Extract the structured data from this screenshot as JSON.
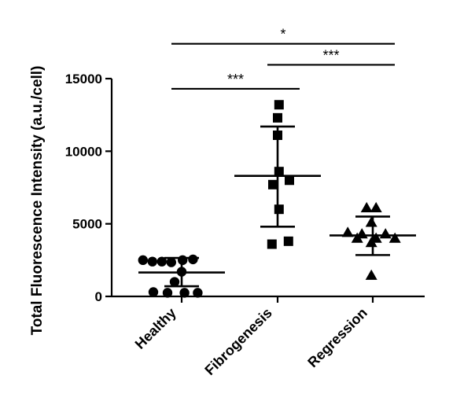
{
  "chart_data": {
    "type": "scatter",
    "title": "",
    "xlabel": "",
    "ylabel": "Total Fluorescence Intensity (a.u./cell)",
    "ylim": [
      0,
      15000
    ],
    "yticks": [
      "0",
      "5000",
      "10000",
      "15000"
    ],
    "grid": false,
    "legend": "none",
    "categories": [
      "Healthy",
      "Fibrogenesis",
      "Regression"
    ],
    "series": [
      {
        "category": "Healthy",
        "marker": "circle",
        "values": [
          2500,
          2400,
          2400,
          2350,
          2500,
          2550,
          1700,
          1000,
          300,
          250,
          250,
          250
        ],
        "jitter": [
          -0.82,
          -0.62,
          -0.42,
          -0.22,
          0.02,
          0.24,
          0.0,
          -0.15,
          -0.6,
          -0.3,
          0.06,
          0.34
        ],
        "mean": 1650,
        "sd_low": 700,
        "sd_high": 2650
      },
      {
        "category": "Fibrogenesis",
        "marker": "square",
        "values": [
          13200,
          12300,
          11100,
          8600,
          8000,
          7700,
          6000,
          3800,
          3600
        ],
        "jitter": [
          0.03,
          0.0,
          0.0,
          0.03,
          0.25,
          -0.1,
          0.03,
          0.23,
          -0.12
        ],
        "mean": 8300,
        "sd_low": 4800,
        "sd_high": 11700
      },
      {
        "category": "Regression",
        "marker": "triangle",
        "values": [
          6100,
          6100,
          5100,
          4400,
          4300,
          4300,
          4000,
          4000,
          4000,
          3700,
          1450
        ],
        "jitter": [
          -0.13,
          0.07,
          -0.03,
          -0.53,
          -0.23,
          0.27,
          -0.33,
          0.07,
          0.47,
          -0.03,
          -0.03
        ],
        "mean": 4200,
        "sd_low": 2850,
        "sd_high": 5500
      }
    ],
    "significance": [
      {
        "from": "Healthy",
        "to": "Fibrogenesis",
        "label": "***",
        "y": 14300
      },
      {
        "from": "Fibrogenesis",
        "to": "Regression",
        "label": "***",
        "y": 15950
      },
      {
        "from": "Healthy",
        "to": "Regression",
        "label": "*",
        "y": 17400
      }
    ]
  }
}
